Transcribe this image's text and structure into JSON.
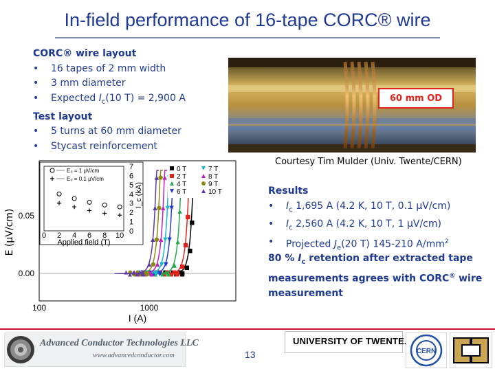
{
  "slide": {
    "title": "In-field performance of 16-tape CORC® wire",
    "page_number": "13"
  },
  "layout_section": {
    "heading": "CORC® wire layout",
    "bullet": "•",
    "items": [
      "16 tapes of 2 mm width",
      "3 mm diameter"
    ],
    "expected_prefix": "Expected ",
    "expected_ic": "I",
    "expected_c": "c",
    "expected_suffix": "(10 T) = 2,900 A"
  },
  "test_section": {
    "heading": "Test layout",
    "items": [
      "5 turns at 60 mm diameter",
      "Stycast reinforcement"
    ]
  },
  "photo": {
    "label": "60 mm OD",
    "courtesy": "Courtesy Tim Mulder (Univ. Twente/CERN)"
  },
  "results": {
    "heading": "Results",
    "item1_prefix": "I",
    "item1_sub": "c",
    "item1_text": " 1,695 A (4.2 K, 10 T, 0.1 μV/cm)",
    "item2_prefix": "I",
    "item2_sub": "c",
    "item2_text": " 2,560 A (4.2 K, 10 T, 1 μV/cm)",
    "item3_prefix": "Projected ",
    "item3_j": "J",
    "item3_sub": "e",
    "item3_text": "(20 T) 145-210 A/mm",
    "item3_sup": "2"
  },
  "retention": {
    "part1": "80 % ",
    "ic": "I",
    "ic_sub": "c",
    "part2": " retention after extracted tape measurements agrees with CORC",
    "reg": "®",
    "part3": " wire measurement"
  },
  "chart_data": [
    {
      "type": "scatter",
      "xlabel": "I (A)",
      "ylabel": "E (μV/cm)",
      "x_scale": "log",
      "xticks": [
        "100",
        "1000"
      ],
      "yticks": [
        "0.00",
        "0.05"
      ],
      "legend_placement": "top-right",
      "series": [
        {
          "name": "0 T",
          "color": "#000000",
          "marker": "square",
          "x": [
            2000,
            2200,
            2350,
            2450,
            2520
          ],
          "y": [
            0.0,
            0.005,
            0.02,
            0.045,
            0.07
          ]
        },
        {
          "name": "2 T",
          "color": "#e0241b",
          "marker": "square",
          "x": [
            1800,
            2000,
            2150,
            2250,
            2320
          ],
          "y": [
            0.0,
            0.006,
            0.025,
            0.05,
            0.075
          ]
        },
        {
          "name": "4 T",
          "color": "#20a84a",
          "marker": "triangle",
          "x": [
            1500,
            1700,
            1820,
            1900,
            1960
          ],
          "y": [
            0.0,
            0.007,
            0.028,
            0.055,
            0.08
          ]
        },
        {
          "name": "6 T",
          "color": "#1e3ad0",
          "marker": "triangle-down",
          "x": [
            1250,
            1420,
            1530,
            1600,
            1650
          ],
          "y": [
            0.0,
            0.008,
            0.03,
            0.058,
            0.085
          ]
        },
        {
          "name": "7 T",
          "color": "#18b8c8",
          "marker": "triangle-down",
          "x": [
            1150,
            1300,
            1400,
            1470,
            1520
          ],
          "y": [
            0.0,
            0.008,
            0.03,
            0.058,
            0.085
          ]
        },
        {
          "name": "8 T",
          "color": "#c020c0",
          "marker": "triangle",
          "x": [
            1050,
            1190,
            1280,
            1340,
            1385
          ],
          "y": [
            0.0,
            0.008,
            0.03,
            0.058,
            0.085
          ]
        },
        {
          "name": "9 T",
          "color": "#8a8a10",
          "marker": "circle",
          "x": [
            960,
            1090,
            1170,
            1230,
            1270
          ],
          "y": [
            0.0,
            0.008,
            0.03,
            0.058,
            0.085
          ]
        },
        {
          "name": "10 T",
          "color": "#5a3aa0",
          "marker": "triangle",
          "x": [
            880,
            1000,
            1080,
            1130,
            1170
          ],
          "y": [
            0.0,
            0.008,
            0.03,
            0.058,
            0.085
          ]
        }
      ]
    },
    {
      "type": "scatter",
      "xlabel": "Applied field (T)",
      "ylabel": "I_c (kA)",
      "xticks": [
        "0",
        "2",
        "4",
        "6",
        "8",
        "10"
      ],
      "yticks": [
        "0",
        "1",
        "2",
        "3",
        "4",
        "5",
        "6",
        "7"
      ],
      "legend": [
        {
          "label": "E₀ = 1 μV/cm",
          "marker": "circle"
        },
        {
          "label": "E₀ = 0.1 μV/cm",
          "marker": "plus"
        }
      ],
      "series": [
        {
          "name": "E₀ = 1 μV/cm",
          "marker": "circle",
          "x": [
            2,
            4,
            6,
            8,
            10
          ],
          "y": [
            4.0,
            3.5,
            3.1,
            2.8,
            2.6
          ]
        },
        {
          "name": "E₀ = 0.1 μV/cm",
          "marker": "plus",
          "x": [
            2,
            4,
            6,
            8,
            10
          ],
          "y": [
            3.0,
            2.6,
            2.2,
            1.9,
            1.7
          ]
        }
      ]
    }
  ],
  "logos": {
    "act_name": "Advanced Conductor Technologies LLC",
    "act_url": "www.advancedconductor.com",
    "twente": "UNIVERSITY OF TWENTE.",
    "cern": "CERN"
  },
  "colors": {
    "text": "#1f3a93",
    "accent": "#e0241b",
    "footer": "#c8102e"
  }
}
